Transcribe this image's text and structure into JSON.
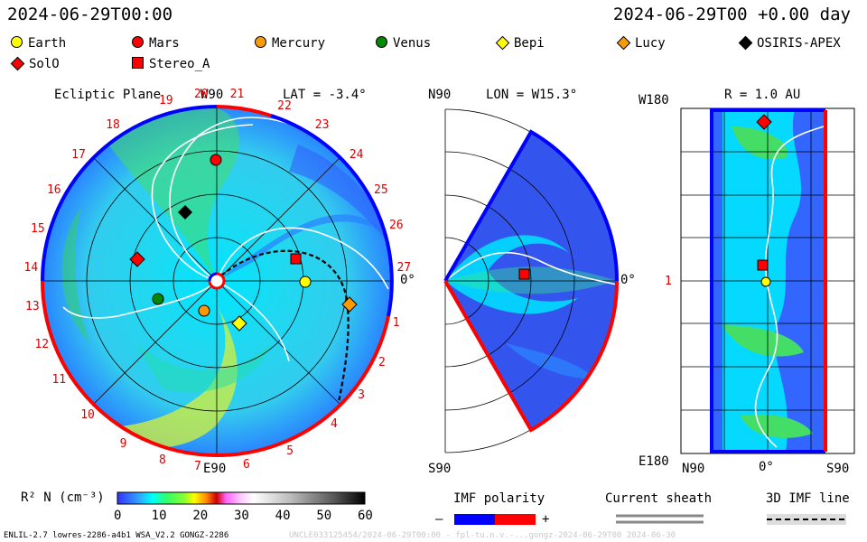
{
  "header": {
    "left_timestamp": "2024-06-29T00:00",
    "right_timestamp": "2024-06-29T00 +0.00 day"
  },
  "legend": [
    {
      "label": "Earth",
      "color": "#ffff00",
      "shape": "circle"
    },
    {
      "label": "Mars",
      "color": "#ff0000",
      "shape": "circle"
    },
    {
      "label": "Mercury",
      "color": "#ff9900",
      "shape": "circle"
    },
    {
      "label": "Venus",
      "color": "#008800",
      "shape": "circle"
    },
    {
      "label": "Bepi",
      "color": "#ffff00",
      "shape": "diamond"
    },
    {
      "label": "Lucy",
      "color": "#ff9900",
      "shape": "diamond"
    },
    {
      "label": "OSIRIS-APEX",
      "color": "#000000",
      "shape": "diamond"
    },
    {
      "label": "SolO",
      "color": "#ff0000",
      "shape": "diamond"
    },
    {
      "label": "Stereo_A",
      "color": "#ff0000",
      "shape": "square"
    }
  ],
  "ecliptic": {
    "title": "Ecliptic Plane",
    "top_label": "W90",
    "lat_label": "LAT = -3.4°",
    "right_label": "0°",
    "bottom_label": "E90",
    "rotations": [
      "19",
      "20",
      "21",
      "22",
      "23",
      "24",
      "25",
      "26",
      "27",
      "1",
      "2",
      "3",
      "4",
      "5",
      "6",
      "7",
      "8",
      "9",
      "10",
      "11",
      "12",
      "13",
      "14",
      "15",
      "16",
      "17",
      "18"
    ]
  },
  "meridional": {
    "top_label": "N90",
    "lon_label": "LON = W15.3°",
    "right_label": "0°",
    "bottom_label": "S90"
  },
  "radial": {
    "left_top_label": "W180",
    "r_label": "R = 1.0 AU",
    "left_mid_label": "1",
    "left_bottom_label": "E180",
    "x_labels": [
      "N90",
      "0°",
      "S90"
    ]
  },
  "colorbar": {
    "label": "R² N (cm⁻³)",
    "ticks": [
      "0",
      "10",
      "20",
      "30",
      "40",
      "50",
      "60"
    ],
    "min": 0,
    "max": 60
  },
  "imf": {
    "title": "IMF polarity",
    "minus": "–",
    "plus": "+",
    "neg_color": "#0000ff",
    "pos_color": "#ff0000"
  },
  "sheath": {
    "title": "Current sheath"
  },
  "imf3d": {
    "title": "3D IMF line"
  },
  "footer": {
    "left": "ENLIL-2.7 lowres-2286-a4b1 WSA_V2.2 GONGZ-2286",
    "right": "UNCLE033125454/2024-06-29T00:00 - fpl-tu.n.v.-...gongz-2024-06-29T00  2024-06-30"
  }
}
